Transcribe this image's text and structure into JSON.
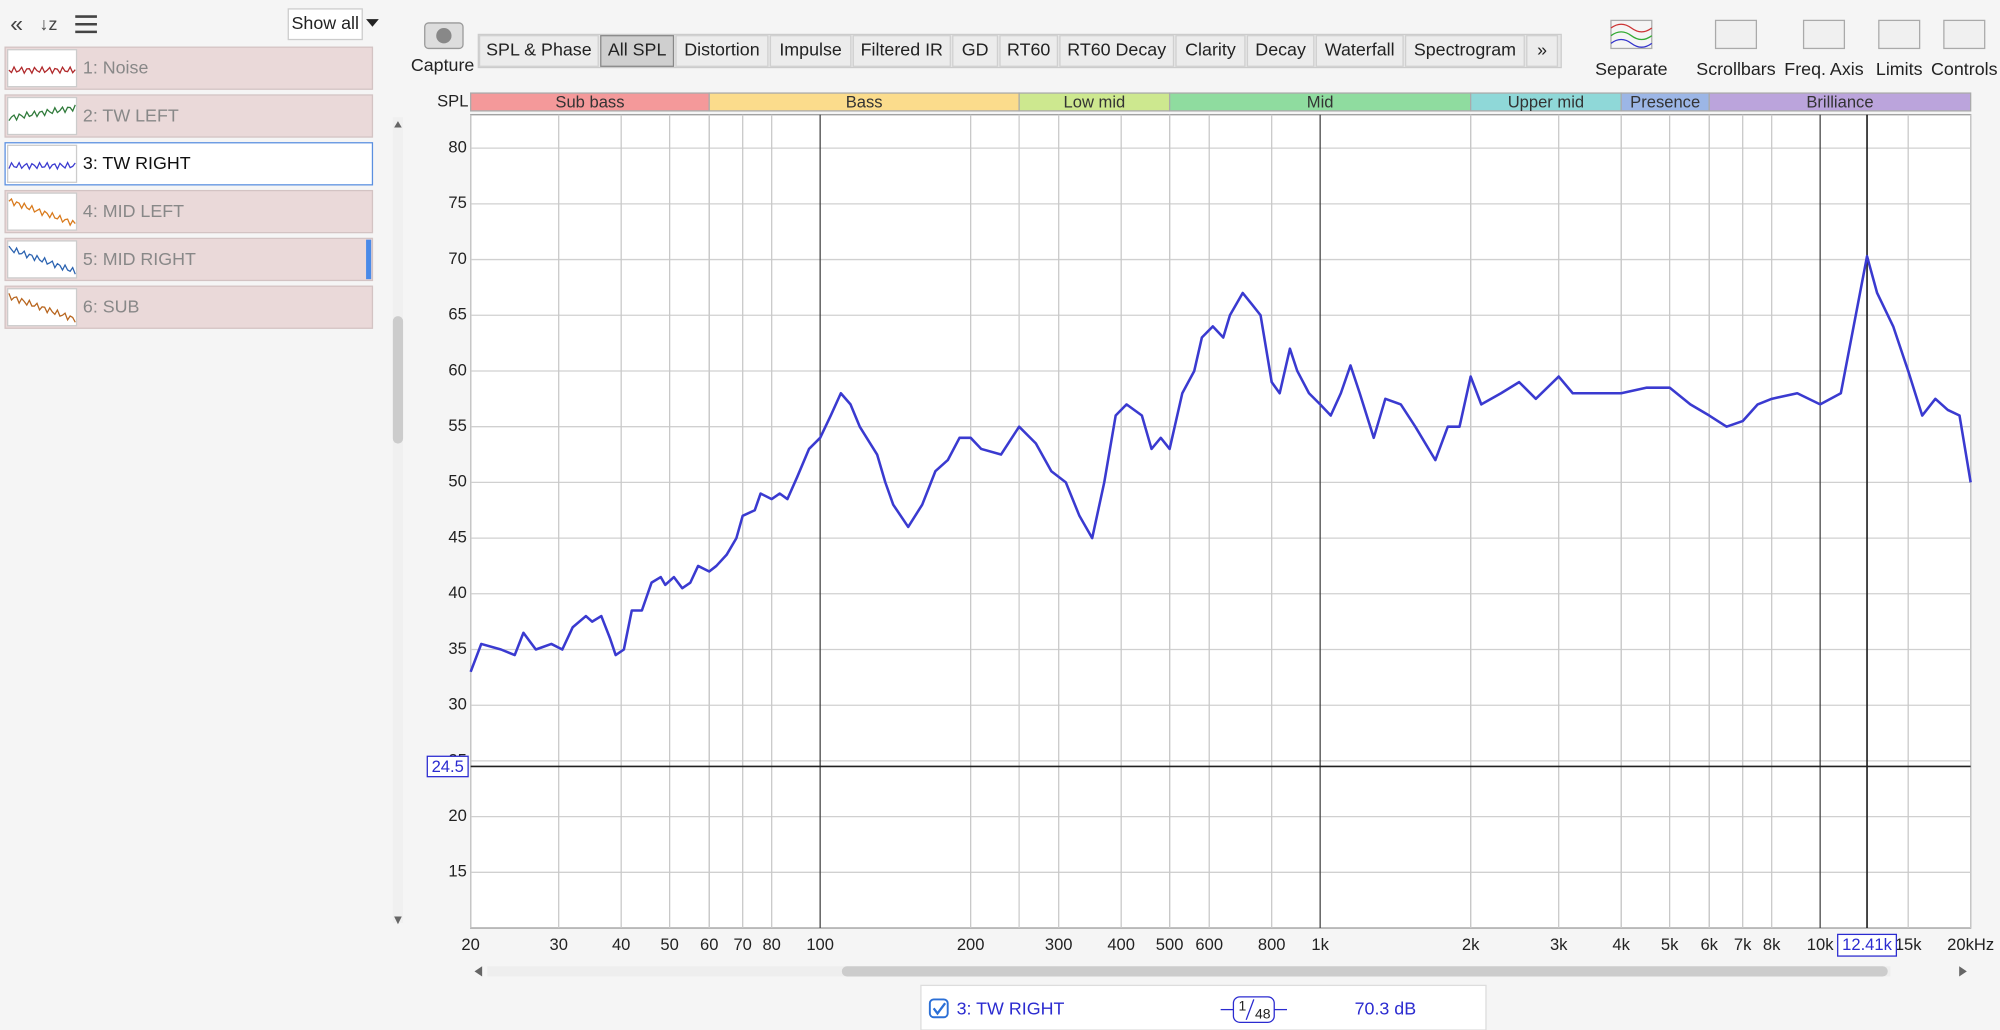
{
  "sidebar": {
    "show_all": "Show all",
    "items": [
      {
        "label": "1: Noise",
        "color": "#b0282a"
      },
      {
        "label": "2: TW LEFT",
        "color": "#2f7a3a"
      },
      {
        "label": "3: TW RIGHT",
        "color": "#3a3ad0"
      },
      {
        "label": "4: MID LEFT",
        "color": "#d97a1c"
      },
      {
        "label": "5: MID RIGHT",
        "color": "#2a62b0"
      },
      {
        "label": "6: SUB",
        "color": "#b8651e"
      }
    ],
    "selected": 2
  },
  "toolbar": {
    "capture": "Capture",
    "tabs": [
      "SPL & Phase",
      "All SPL",
      "Distortion",
      "Impulse",
      "Filtered IR",
      "GD",
      "RT60",
      "RT60 Decay",
      "Clarity",
      "Decay",
      "Waterfall",
      "Spectrogram",
      "»"
    ],
    "active": 1,
    "tools": [
      "Separate",
      "Scrollbars",
      "Freq. Axis",
      "Limits",
      "Controls"
    ]
  },
  "chart_data": {
    "type": "line",
    "ylabel": "SPL",
    "xscale": "log",
    "grid": true,
    "bands": [
      {
        "name": "Sub bass",
        "from": 20,
        "to": 60,
        "color": "#f4999a"
      },
      {
        "name": "Bass",
        "from": 60,
        "to": 250,
        "color": "#fbdc8c"
      },
      {
        "name": "Low mid",
        "from": 250,
        "to": 500,
        "color": "#cde88f"
      },
      {
        "name": "Mid",
        "from": 500,
        "to": 2000,
        "color": "#8fdc9f"
      },
      {
        "name": "Upper mid",
        "from": 2000,
        "to": 4000,
        "color": "#8fd8d8"
      },
      {
        "name": "Presence",
        "from": 4000,
        "to": 6000,
        "color": "#9cb6e6"
      },
      {
        "name": "Brilliance",
        "from": 6000,
        "to": 20000,
        "color": "#bba4dc"
      }
    ],
    "xlim": [
      20,
      20000
    ],
    "ylim": [
      10,
      83
    ],
    "xticks": [
      20,
      30,
      40,
      50,
      60,
      70,
      80,
      100,
      200,
      300,
      400,
      500,
      600,
      800,
      {
        "value": 1000,
        "label": "1k"
      },
      {
        "value": 2000,
        "label": "2k"
      },
      {
        "value": 3000,
        "label": "3k"
      },
      {
        "value": 4000,
        "label": "4k"
      },
      {
        "value": 5000,
        "label": "5k"
      },
      {
        "value": 6000,
        "label": "6k"
      },
      {
        "value": 7000,
        "label": "7k"
      },
      {
        "value": 8000,
        "label": "8k"
      },
      {
        "value": 10000,
        "label": "10k"
      },
      {
        "value": 15000,
        "label": "15k"
      },
      {
        "value": 20000,
        "label": "20kHz"
      }
    ],
    "yticks": [
      15,
      20,
      25,
      30,
      35,
      40,
      45,
      50,
      55,
      60,
      65,
      70,
      75,
      80
    ],
    "cursor_x": {
      "value": 12410,
      "label": "12.41k"
    },
    "cursor_y": 24.5,
    "series": [
      {
        "name": "3: TW RIGHT",
        "color": "#3a3ad0",
        "x": [
          20,
          21,
          23,
          24.5,
          25.5,
          27,
          29,
          30.5,
          32,
          34,
          35,
          36.5,
          38,
          39,
          40.5,
          42,
          44,
          46,
          48,
          49,
          51,
          53,
          55,
          57,
          60,
          62,
          65,
          68,
          70,
          74,
          76,
          80,
          83,
          86,
          90,
          95,
          100,
          105,
          110,
          115,
          120,
          130,
          135,
          140,
          150,
          160,
          170,
          180,
          190,
          200,
          210,
          230,
          250,
          270,
          290,
          310,
          330,
          350,
          370,
          390,
          410,
          440,
          460,
          480,
          500,
          530,
          560,
          580,
          610,
          640,
          660,
          700,
          730,
          760,
          800,
          830,
          870,
          900,
          950,
          1000,
          1050,
          1100,
          1150,
          1200,
          1280,
          1350,
          1450,
          1550,
          1700,
          1800,
          1900,
          2000,
          2100,
          2300,
          2500,
          2700,
          3000,
          3200,
          3500,
          4000,
          4500,
          5000,
          5500,
          6000,
          6500,
          7000,
          7500,
          8000,
          9000,
          10000,
          11000,
          12410,
          13000,
          14000,
          15000,
          16000,
          17000,
          18000,
          19000,
          20000
        ],
        "values": [
          33,
          35.5,
          35,
          34.5,
          36.5,
          35,
          35.5,
          35,
          37,
          38,
          37.5,
          38,
          36,
          34.5,
          35,
          38.5,
          38.5,
          41,
          41.5,
          40.8,
          41.5,
          40.5,
          41,
          42.5,
          42,
          42.5,
          43.5,
          45,
          47,
          47.5,
          49,
          48.5,
          49,
          48.5,
          50.5,
          53,
          54,
          56,
          58,
          57,
          55,
          52.5,
          50,
          48,
          46,
          48,
          51,
          52,
          54,
          54,
          53,
          52.5,
          55,
          53.5,
          51,
          50,
          47,
          45,
          50,
          56,
          57,
          56,
          53,
          54,
          53,
          58,
          60,
          63,
          64,
          63,
          65,
          67,
          66,
          65,
          59,
          58,
          62,
          60,
          58,
          57,
          56,
          58,
          60.5,
          58,
          54,
          57.5,
          57,
          55,
          52,
          55,
          55,
          59.5,
          57,
          58,
          59,
          57.5,
          59.5,
          58,
          58,
          58,
          58.5,
          58.5,
          57,
          56,
          55,
          55.5,
          57,
          57.5,
          58,
          57,
          58,
          70.3,
          67,
          64,
          60,
          56,
          57.5,
          56.5,
          56,
          50
        ]
      }
    ]
  },
  "status": {
    "name": "3: TW RIGHT",
    "smoothing_num": "1",
    "smoothing_den": "48",
    "readout": "70.3 dB"
  }
}
